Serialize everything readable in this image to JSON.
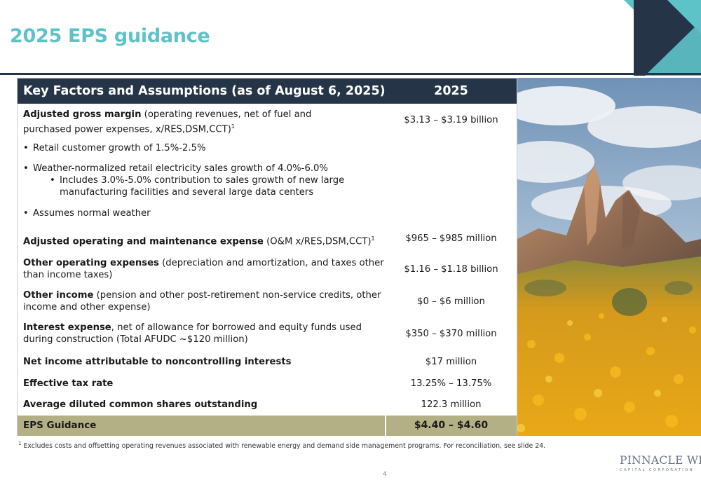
{
  "slide": {
    "title": "2025 EPS guidance",
    "page_number": "4"
  },
  "table": {
    "header": {
      "factors": "Key Factors and Assumptions (as of August 6, 2025)",
      "year": "2025"
    },
    "rows": [
      {
        "label_bold": "Adjusted gross margin",
        "label_rest_line1": " (operating revenues, net of fuel and",
        "label_line2": "purchased power expenses, x/RES,DSM,CCT)",
        "footnote_mark": "1",
        "value": "$3.13 – $3.19 billion"
      },
      {
        "label_bold": "Adjusted operating and maintenance expense",
        "label_rest": " (O&M x/RES,DSM,CCT)",
        "footnote_mark": "1",
        "value": "$965 – $985 million"
      },
      {
        "label_bold": "Other operating expenses",
        "label_rest": " (depreciation and amortization, and taxes other than income taxes)",
        "value": "$1.16 – $1.18 billion"
      },
      {
        "label_bold": "Other income",
        "label_rest": " (pension and other post-retirement non-service credits, other income and other expense)",
        "value": "$0 – $6 million"
      },
      {
        "label_bold": "Interest expense",
        "label_rest": ", net of allowance for borrowed and equity funds used during construction (Total AFUDC ~$120 million)",
        "value": "$350 – $370 million"
      },
      {
        "label_bold": "Net income attributable to noncontrolling interests",
        "value": "$17 million"
      },
      {
        "label_bold": "Effective tax rate",
        "value": "13.25% – 13.75%"
      },
      {
        "label_bold": "Average diluted common shares outstanding",
        "value": "122.3 million"
      }
    ],
    "bullets": [
      "Retail customer growth of 1.5%-2.5%",
      "Weather-normalized retail electricity sales growth of 4.0%-6.0%",
      "Includes 3.0%-5.0% contribution to sales growth of new large manufacturing facilities and several large data centers",
      "Assumes normal weather"
    ],
    "bullet_char": "•",
    "eps": {
      "label": "EPS Guidance",
      "value": "$4.40 – $4.60"
    }
  },
  "footnote": {
    "mark": "1",
    "text": " Excludes costs and offsetting operating revenues associated with renewable energy and demand side management programs. For reconciliation, see slide 24."
  },
  "logo": {
    "name": "PINNACLE WEST",
    "subtitle": "CAPITAL CORPORATION"
  },
  "colors": {
    "title": "#5ec3c8",
    "navy": "#253447",
    "teal": "#5ec3c8",
    "eps_bar": "#b2b084"
  },
  "image": {
    "subject": "desert-mountain-poppies-photo"
  }
}
